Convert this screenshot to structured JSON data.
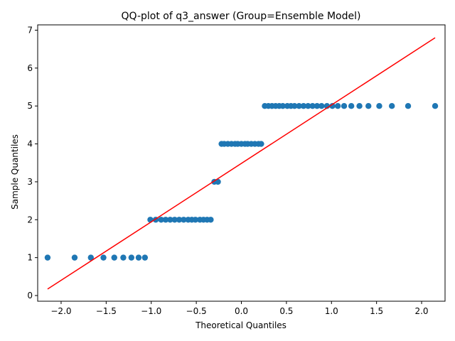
{
  "chart_data": {
    "type": "scatter",
    "title": "QQ-plot of q3_answer (Group=Ensemble Model)",
    "xlabel": "Theoretical Quantiles",
    "ylabel": "Sample Quantiles",
    "xlim": [
      -2.26,
      2.26
    ],
    "ylim": [
      -0.15,
      7.14
    ],
    "xticks": [
      -2.0,
      -1.5,
      -1.0,
      -0.5,
      0.0,
      0.5,
      1.0,
      1.5,
      2.0
    ],
    "xtick_labels": [
      "−2.0",
      "−1.5",
      "−1.0",
      "−0.5",
      "0.0",
      "0.5",
      "1.0",
      "1.5",
      "2.0"
    ],
    "yticks": [
      0,
      1,
      2,
      3,
      4,
      5,
      6,
      7
    ],
    "ytick_labels": [
      "0",
      "1",
      "2",
      "3",
      "4",
      "5",
      "6",
      "7"
    ],
    "grid": false,
    "marker_color": "#1f77b4",
    "line_color": "#ff0000",
    "reference_line": {
      "x": [
        -2.15,
        2.15
      ],
      "y": [
        0.17,
        6.8
      ]
    },
    "points": {
      "x": [
        -2.15,
        -1.85,
        -1.67,
        -1.53,
        -1.41,
        -1.31,
        -1.22,
        -1.14,
        -1.07,
        -1.01,
        -0.95,
        -0.89,
        -0.84,
        -0.79,
        -0.74,
        -0.69,
        -0.64,
        -0.59,
        -0.55,
        -0.51,
        -0.46,
        -0.42,
        -0.38,
        -0.34,
        -0.3,
        -0.26,
        -0.22,
        -0.19,
        -0.15,
        -0.11,
        -0.07,
        -0.04,
        0.0,
        0.04,
        0.07,
        0.11,
        0.15,
        0.19,
        0.22,
        0.26,
        0.3,
        0.34,
        0.38,
        0.42,
        0.46,
        0.51,
        0.55,
        0.59,
        0.64,
        0.69,
        0.74,
        0.79,
        0.84,
        0.89,
        0.95,
        1.01,
        1.07,
        1.14,
        1.22,
        1.31,
        1.41,
        1.53,
        1.67,
        1.85,
        2.15
      ],
      "y": [
        1,
        1,
        1,
        1,
        1,
        1,
        1,
        1,
        1,
        2,
        2,
        2,
        2,
        2,
        2,
        2,
        2,
        2,
        2,
        2,
        2,
        2,
        2,
        2,
        3,
        3,
        4,
        4,
        4,
        4,
        4,
        4,
        4,
        4,
        4,
        4,
        4,
        4,
        4,
        5,
        5,
        5,
        5,
        5,
        5,
        5,
        5,
        5,
        5,
        5,
        5,
        5,
        5,
        5,
        5,
        5,
        5,
        5,
        5,
        5,
        5,
        5,
        5,
        5,
        5
      ]
    }
  }
}
